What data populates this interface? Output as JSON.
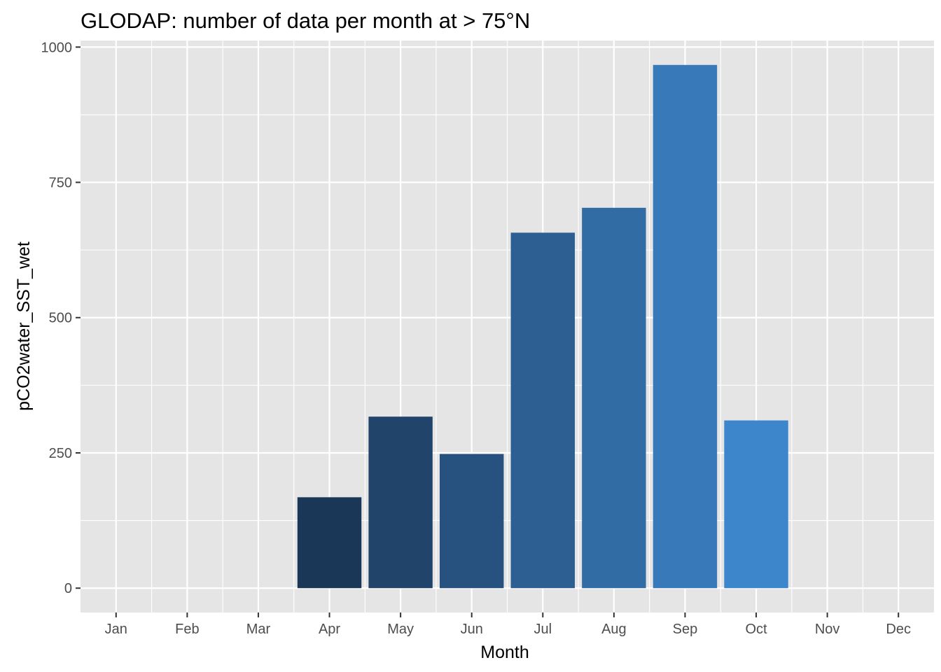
{
  "chart_data": {
    "type": "bar",
    "title": "GLODAP: number of data per month at > 75°N",
    "xlabel": "Month",
    "ylabel": "pCO2water_SST_wet",
    "categories": [
      "Jan",
      "Feb",
      "Mar",
      "Apr",
      "May",
      "Jun",
      "Jul",
      "Aug",
      "Sep",
      "Oct",
      "Nov",
      "Dec"
    ],
    "values": [
      0,
      0,
      0,
      168,
      317,
      248,
      657,
      703,
      967,
      310,
      0,
      0
    ],
    "ylim": [
      -45,
      1012
    ],
    "yticks": [
      0,
      250,
      500,
      750,
      1000
    ],
    "ytick_labels": [
      "0",
      "250",
      "500",
      "750",
      "1000"
    ],
    "grid": true,
    "legend": "none",
    "fill_scale": {
      "low": "#1b3757",
      "high": "#3e86cc"
    },
    "panel_background": "#e5e5e5",
    "grid_color": "#ffffff"
  }
}
